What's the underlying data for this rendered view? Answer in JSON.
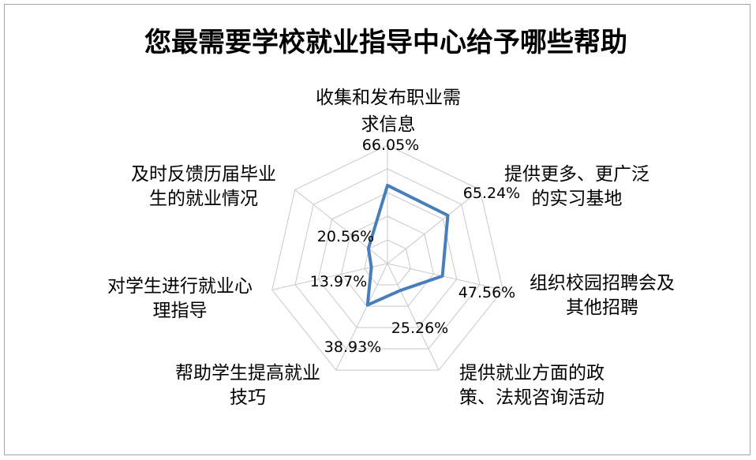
{
  "colors": {
    "series": "#4a7ebb",
    "grid": "#c8c8c8",
    "border": "#a6a6a6"
  },
  "chart_data": {
    "type": "radar",
    "title": "您最需要学校就业指导中心给予哪些帮助",
    "categories": [
      [
        "收集和发布职业需",
        "求信息"
      ],
      [
        "提供更多、更广泛",
        "的实习基地"
      ],
      [
        "组织校园招聘会及",
        "其他招聘"
      ],
      [
        "提供就业方面的政",
        "策、法规咨询活动"
      ],
      [
        "帮助学生提高就业",
        "技巧"
      ],
      [
        "对学生进行就业心",
        "理指导"
      ],
      [
        "及时反馈历届毕业",
        "生的就业情况"
      ]
    ],
    "values": [
      66.05,
      65.24,
      47.56,
      25.26,
      38.93,
      13.97,
      20.56
    ],
    "value_labels": [
      "66.05%",
      "65.24%",
      "47.56%",
      "25.26%",
      "38.93%",
      "13.97%",
      "20.56%"
    ],
    "rmax": 100,
    "grid_rings": 5,
    "legend": "none"
  }
}
